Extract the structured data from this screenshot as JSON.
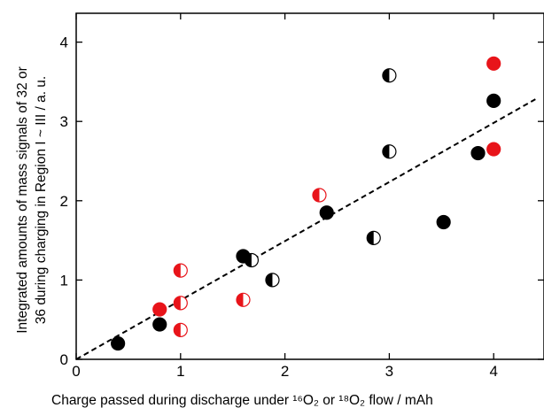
{
  "chart_data": {
    "type": "scatter",
    "xlabel": "Charge passed during discharge under ¹⁶O₂ or ¹⁸O₂ flow / mAh",
    "ylabel_line1": "Integrated amounts of mass signals of 32 or",
    "ylabel_line2": "36 during charging  in Region I ~ III / a. u.",
    "xlim": [
      0,
      4.5
    ],
    "ylim": [
      0,
      4.4
    ],
    "xticks": [
      0,
      1,
      2,
      3,
      4
    ],
    "yticks": [
      0,
      1,
      2,
      3,
      4
    ],
    "grid": false,
    "colors": {
      "black": "#000000",
      "red": "#e8141a",
      "white": "#ffffff"
    },
    "series": [
      {
        "marker": "filled-black",
        "points": [
          [
            0.4,
            0.2
          ],
          [
            0.8,
            0.44
          ],
          [
            1.6,
            1.3
          ],
          [
            2.4,
            1.85
          ],
          [
            3.52,
            1.73
          ],
          [
            3.85,
            2.6
          ],
          [
            4.0,
            3.26
          ]
        ]
      },
      {
        "marker": "half-black",
        "points": [
          [
            1.68,
            1.25
          ],
          [
            1.88,
            1.0
          ],
          [
            2.85,
            1.53
          ],
          [
            3.0,
            2.62
          ],
          [
            3.0,
            3.58
          ]
        ]
      },
      {
        "marker": "filled-red",
        "points": [
          [
            0.8,
            0.63
          ],
          [
            4.0,
            3.73
          ],
          [
            4.0,
            2.65
          ]
        ]
      },
      {
        "marker": "half-red",
        "points": [
          [
            1.0,
            1.12
          ],
          [
            1.0,
            0.71
          ],
          [
            1.0,
            0.37
          ],
          [
            1.6,
            0.75
          ],
          [
            2.33,
            2.07
          ]
        ]
      }
    ],
    "fit_line": {
      "style": "dashed",
      "points": [
        [
          0.0,
          0.0
        ],
        [
          4.4,
          3.28
        ]
      ]
    }
  }
}
